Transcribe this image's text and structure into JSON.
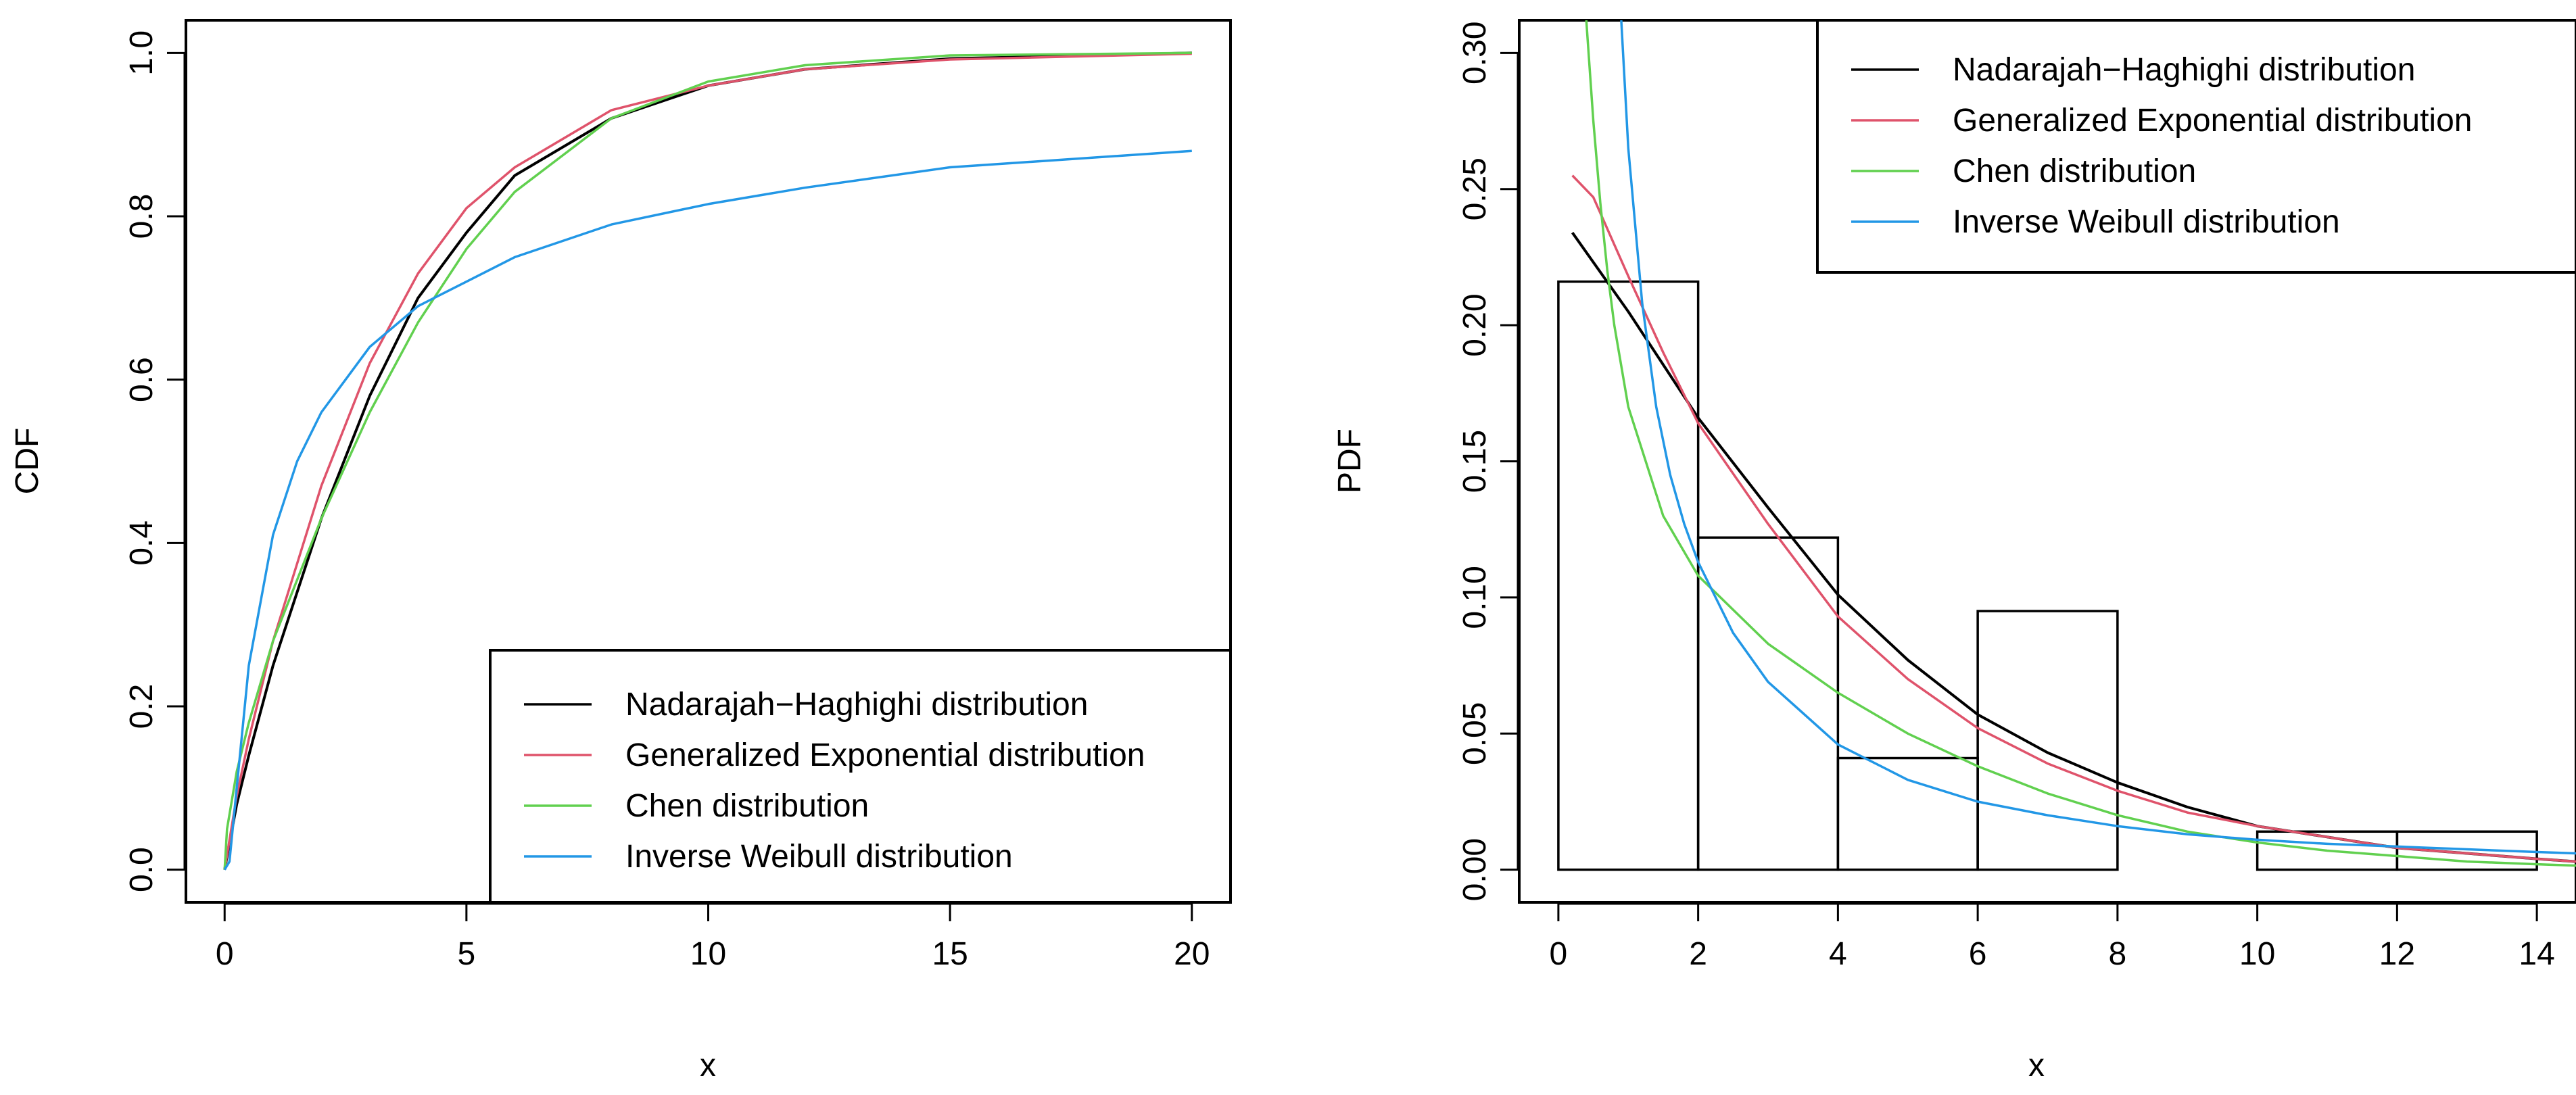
{
  "colors": {
    "black": "#000000",
    "red": "#DF536B",
    "green": "#61D04F",
    "blue": "#2297E6"
  },
  "chart_data": [
    {
      "type": "line",
      "title": "",
      "xlabel": "x",
      "ylabel": "CDF",
      "xlim": [
        -0.8,
        20.8
      ],
      "ylim": [
        -0.04,
        1.04
      ],
      "x_ticks": [
        0,
        5,
        10,
        15,
        20
      ],
      "x_tick_labels": [
        "0",
        "5",
        "10",
        "15",
        "20"
      ],
      "y_ticks": [
        0,
        0.2,
        0.4,
        0.6,
        0.8,
        1.0
      ],
      "y_tick_labels": [
        "0.0",
        "0.2",
        "0.4",
        "0.6",
        "0.8",
        "1.0"
      ],
      "legend_position": "bottom-right",
      "series": [
        {
          "name": "Nadarajah−Haghighi distribution",
          "color": "#000000",
          "x": [
            0,
            0.25,
            0.5,
            1,
            2,
            3,
            4,
            5,
            6,
            8,
            10,
            12,
            15,
            20
          ],
          "y": [
            0,
            0.08,
            0.14,
            0.25,
            0.43,
            0.58,
            0.7,
            0.78,
            0.85,
            0.92,
            0.96,
            0.98,
            0.993,
            1.0
          ]
        },
        {
          "name": "Generalized Exponential distribution",
          "color": "#DF536B",
          "x": [
            0,
            0.25,
            0.5,
            1,
            2,
            3,
            4,
            5,
            6,
            8,
            10,
            12,
            15,
            20
          ],
          "y": [
            0,
            0.09,
            0.16,
            0.28,
            0.47,
            0.62,
            0.73,
            0.81,
            0.86,
            0.93,
            0.96,
            0.98,
            0.992,
            0.999
          ]
        },
        {
          "name": "Chen distribution",
          "color": "#61D04F",
          "x": [
            0,
            0.05,
            0.25,
            0.5,
            1,
            2,
            3,
            4,
            5,
            6,
            8,
            10,
            12,
            15,
            20
          ],
          "y": [
            0,
            0.05,
            0.12,
            0.18,
            0.28,
            0.43,
            0.56,
            0.67,
            0.76,
            0.83,
            0.92,
            0.965,
            0.985,
            0.997,
            1.0
          ]
        },
        {
          "name": "Inverse Weibull distribution",
          "color": "#2297E6",
          "x": [
            0,
            0.1,
            0.25,
            0.5,
            1,
            1.5,
            2,
            3,
            4,
            5,
            6,
            8,
            10,
            12,
            15,
            20
          ],
          "y": [
            0,
            0.01,
            0.1,
            0.25,
            0.41,
            0.5,
            0.56,
            0.64,
            0.69,
            0.72,
            0.75,
            0.79,
            0.815,
            0.835,
            0.86,
            0.88
          ]
        }
      ]
    },
    {
      "type": "line",
      "title": "",
      "xlabel": "x",
      "ylabel": "PDF",
      "xlim": [
        -0.56,
        14.56
      ],
      "ylim": [
        -0.012,
        0.312
      ],
      "x_ticks": [
        0,
        2,
        4,
        6,
        8,
        10,
        12,
        14
      ],
      "x_tick_labels": [
        "0",
        "2",
        "4",
        "6",
        "8",
        "10",
        "12",
        "14"
      ],
      "y_ticks": [
        0,
        0.05,
        0.1,
        0.15,
        0.2,
        0.25,
        0.3
      ],
      "y_tick_labels": [
        "0.00",
        "0.05",
        "0.10",
        "0.15",
        "0.20",
        "0.25",
        "0.30"
      ],
      "legend_position": "top-right",
      "histogram": {
        "breaks": [
          0,
          2,
          4,
          6,
          8,
          10,
          12,
          14
        ],
        "density": [
          0.216,
          0.122,
          0.041,
          0.095,
          0,
          0.014,
          0.014
        ]
      },
      "series": [
        {
          "name": "Nadarajah−Haghighi distribution",
          "color": "#000000",
          "x": [
            0.2,
            1,
            2,
            3,
            4,
            5,
            6,
            7,
            8,
            9,
            10,
            11,
            12,
            13,
            14,
            14.56
          ],
          "y": [
            0.234,
            0.205,
            0.166,
            0.133,
            0.101,
            0.077,
            0.057,
            0.043,
            0.032,
            0.023,
            0.016,
            0.012,
            0.008,
            0.006,
            0.004,
            0.003
          ]
        },
        {
          "name": "Generalized Exponential distribution",
          "color": "#DF536B",
          "x": [
            0.2,
            0.5,
            1,
            1.5,
            2,
            3,
            4,
            5,
            6,
            7,
            8,
            9,
            10,
            11,
            12,
            13,
            14,
            14.56
          ],
          "y": [
            0.255,
            0.247,
            0.218,
            0.19,
            0.164,
            0.127,
            0.093,
            0.07,
            0.052,
            0.039,
            0.029,
            0.021,
            0.016,
            0.012,
            0.008,
            0.006,
            0.004,
            0.003
          ]
        },
        {
          "name": "Chen distribution",
          "color": "#61D04F",
          "x": [
            0.4,
            0.5,
            0.6,
            0.7,
            0.8,
            1,
            1.5,
            2,
            3,
            4,
            5,
            6,
            7,
            8,
            9,
            10,
            11,
            12,
            13,
            14,
            14.56
          ],
          "y": [
            0.312,
            0.275,
            0.245,
            0.22,
            0.2,
            0.17,
            0.13,
            0.108,
            0.083,
            0.065,
            0.05,
            0.038,
            0.028,
            0.02,
            0.014,
            0.01,
            0.007,
            0.005,
            0.003,
            0.002,
            0.0015
          ]
        },
        {
          "name": "Inverse Weibull distribution",
          "color": "#2297E6",
          "x": [
            0.9,
            1,
            1.2,
            1.4,
            1.6,
            1.8,
            2,
            2.5,
            3,
            4,
            5,
            6,
            7,
            8,
            9,
            10,
            11,
            12,
            13,
            14,
            14.56
          ],
          "y": [
            0.312,
            0.265,
            0.208,
            0.17,
            0.145,
            0.127,
            0.113,
            0.087,
            0.069,
            0.046,
            0.033,
            0.025,
            0.02,
            0.016,
            0.013,
            0.011,
            0.0095,
            0.0085,
            0.0075,
            0.0065,
            0.006
          ]
        }
      ]
    }
  ]
}
